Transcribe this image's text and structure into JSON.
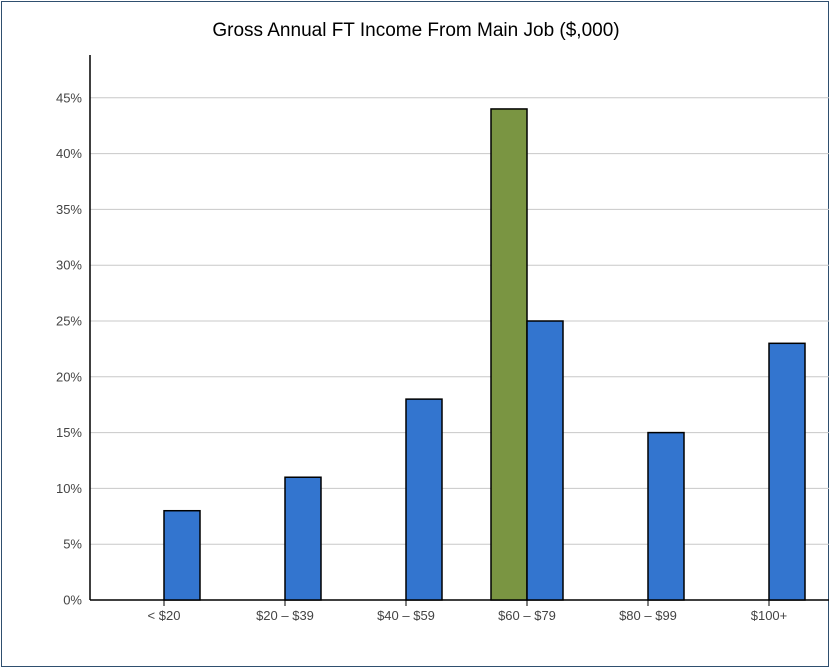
{
  "chart_data": {
    "type": "bar",
    "title": "Gross Annual FT Income From Main Job ($,000)",
    "categories": [
      "< $20",
      "$20 – $39",
      "$40 – $59",
      "$60 – $79",
      "$80 – $99",
      "$100+"
    ],
    "series": [
      {
        "color": "#7a9542",
        "values": [
          0,
          0,
          0,
          44,
          0,
          0
        ]
      },
      {
        "color": "#3375cf",
        "values": [
          8,
          11,
          18,
          25,
          15,
          23
        ]
      }
    ],
    "ylim": [
      0,
      45
    ],
    "yticks": [
      "0%",
      "5%",
      "10%",
      "15%",
      "20%",
      "25%",
      "30%",
      "35%",
      "40%",
      "45%"
    ],
    "grid": true
  }
}
